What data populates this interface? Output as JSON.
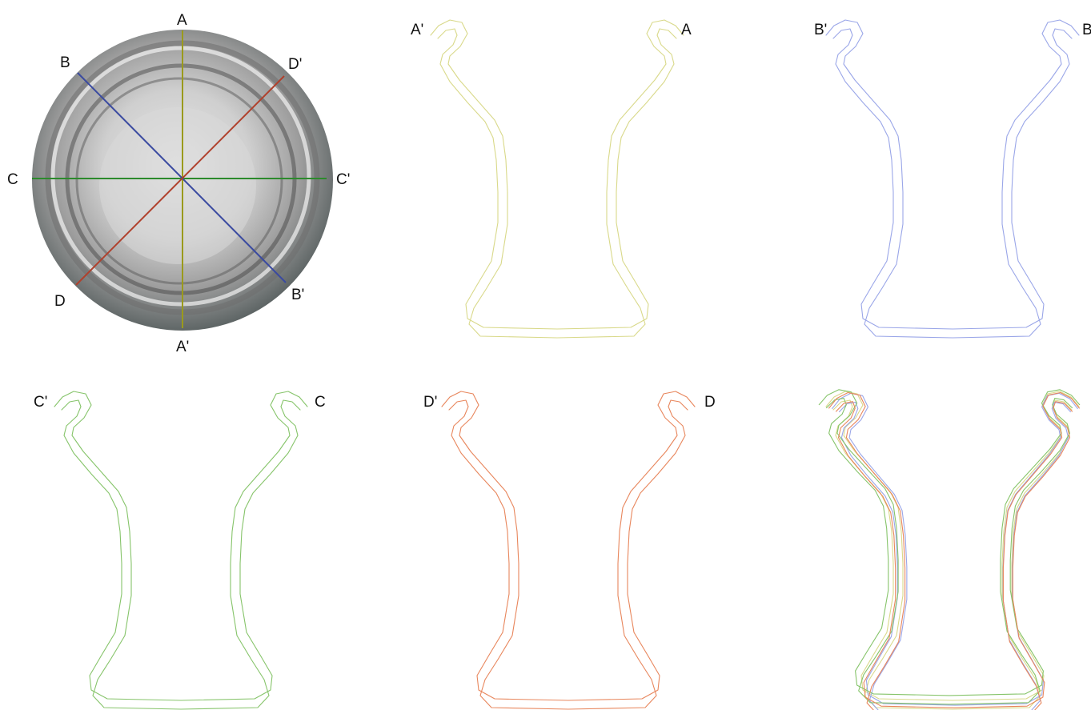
{
  "disc": {
    "labels": {
      "a": "A",
      "a_prime": "A'",
      "b": "B",
      "b_prime": "B'",
      "c": "C",
      "c_prime": "C'",
      "d": "D",
      "d_prime": "D'"
    },
    "line_colors": {
      "a": "#9a9a1c",
      "b": "#3a4aa0",
      "c": "#2c8a2c",
      "d": "#b0402c"
    }
  },
  "panels": [
    {
      "id": "a",
      "left_label": "A'",
      "right_label": "A",
      "color": "#d9d98a"
    },
    {
      "id": "b",
      "left_label": "B'",
      "right_label": "B",
      "color": "#9aa6e8"
    },
    {
      "id": "c",
      "left_label": "C'",
      "right_label": "C",
      "color": "#86c46a"
    },
    {
      "id": "d",
      "left_label": "D'",
      "right_label": "D",
      "color": "#e8865c"
    },
    {
      "id": "overlay",
      "left_label": "",
      "right_label": "",
      "colors": [
        "#d9d98a",
        "#9aa6e8",
        "#86c46a",
        "#e8865c"
      ]
    }
  ]
}
